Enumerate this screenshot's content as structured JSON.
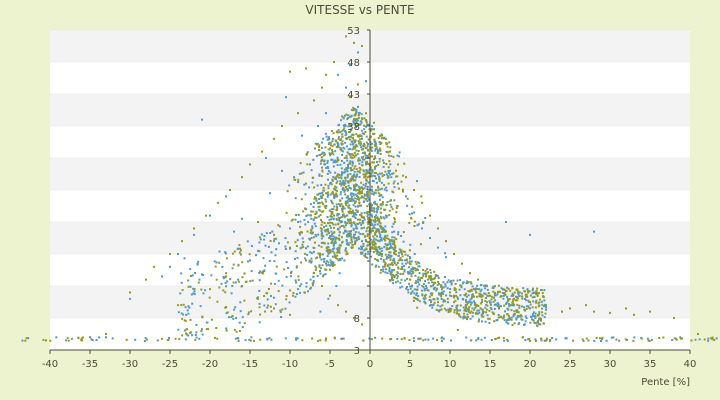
{
  "chart_data": {
    "type": "scatter",
    "title": "VITESSE vs PENTE",
    "xlabel": "Pente [%]",
    "ylabel": "",
    "xlim": [
      -40,
      40
    ],
    "ylim": [
      3,
      53
    ],
    "x_ticks": [
      -40,
      -35,
      -30,
      -25,
      -20,
      -15,
      -10,
      -5,
      0,
      5,
      10,
      15,
      20,
      25,
      30,
      35,
      40
    ],
    "x_tick_labels": [
      "-40",
      "-35",
      "-30",
      "-25",
      "-20",
      "-15",
      "-10",
      "-5",
      "0",
      "5",
      "10",
      "15",
      "20",
      "25",
      "30",
      "35",
      "40"
    ],
    "y_ticks": [
      3,
      8,
      13,
      18,
      23,
      28,
      33,
      38,
      43,
      48,
      53
    ],
    "y_tick_labels": [
      "3",
      "8",
      "13",
      "18",
      "23",
      "28",
      "33",
      "38",
      "43",
      "48",
      "53"
    ],
    "y_visible_labels": [
      "53",
      "48",
      "43",
      "38",
      "8",
      "3"
    ],
    "grid": "horizontal-bands",
    "legend": "none",
    "colors": {
      "series_a": "#4a9ad6",
      "series_b": "#9a9a10",
      "band": "#f3f3f3",
      "plot_bg": "#ffffff",
      "axis": "#4b4b36"
    },
    "series": [
      {
        "color": "#4a9ad6",
        "points": [
          [
            -2.0,
            38.5
          ],
          [
            -1.5,
            41.0
          ],
          [
            -3.0,
            37.0
          ],
          [
            -4.0,
            35.0
          ],
          [
            -2.5,
            33.5
          ],
          [
            -1.0,
            36.0
          ],
          [
            -0.5,
            32.0
          ],
          [
            -3.5,
            30.5
          ],
          [
            -5.0,
            29.0
          ],
          [
            -2.0,
            28.0
          ],
          [
            -1.0,
            27.0
          ],
          [
            0.5,
            26.0
          ],
          [
            1.0,
            25.0
          ],
          [
            2.0,
            24.0
          ],
          [
            -6.0,
            27.5
          ],
          [
            -7.0,
            26.0
          ],
          [
            -8.0,
            25.0
          ],
          [
            -9.0,
            23.0
          ],
          [
            -10.0,
            22.0
          ],
          [
            -12.0,
            20.0
          ],
          [
            -14.0,
            18.5
          ],
          [
            -15.0,
            17.0
          ],
          [
            -4.5,
            24.0
          ],
          [
            -3.0,
            22.5
          ],
          [
            -2.0,
            21.0
          ],
          [
            -1.0,
            20.0
          ],
          [
            0.0,
            19.5
          ],
          [
            1.5,
            18.0
          ],
          [
            3.0,
            17.0
          ],
          [
            4.0,
            16.0
          ],
          [
            5.0,
            15.0
          ],
          [
            6.0,
            14.0
          ],
          [
            7.0,
            13.0
          ],
          [
            8.0,
            12.5
          ],
          [
            9.0,
            12.0
          ],
          [
            10.0,
            11.5
          ],
          [
            11.0,
            11.0
          ],
          [
            12.0,
            10.8
          ],
          [
            13.0,
            10.6
          ],
          [
            14.0,
            10.5
          ],
          [
            15.0,
            10.4
          ],
          [
            16.0,
            10.3
          ],
          [
            17.0,
            10.2
          ],
          [
            18.0,
            10.0
          ],
          [
            19.0,
            9.8
          ],
          [
            20.0,
            9.5
          ],
          [
            22.0,
            9.3
          ],
          [
            24.0,
            9.0
          ],
          [
            -21.0,
            39.0
          ],
          [
            -13.0,
            33.0
          ],
          [
            -10.5,
            42.5
          ],
          [
            -11.0,
            31.0
          ],
          [
            -8.5,
            36.5
          ],
          [
            -6.5,
            38.0
          ],
          [
            -5.5,
            40.0
          ],
          [
            -4.0,
            46.0
          ],
          [
            -3.0,
            44.0
          ],
          [
            -2.5,
            47.5
          ],
          [
            -1.5,
            49.5
          ],
          [
            -0.5,
            45.0
          ],
          [
            -18.0,
            27.0
          ],
          [
            -20.0,
            24.0
          ],
          [
            -22.0,
            21.0
          ],
          [
            -24.0,
            18.0
          ],
          [
            -25.0,
            16.0
          ],
          [
            -26.0,
            14.5
          ],
          [
            -30.0,
            11.0
          ],
          [
            -35.0,
            5.0
          ],
          [
            -38.0,
            4.5
          ],
          [
            17.0,
            23.0
          ],
          [
            20.0,
            21.0
          ],
          [
            28.0,
            21.5
          ],
          [
            2.5,
            31.0
          ],
          [
            3.5,
            29.0
          ],
          [
            4.5,
            27.0
          ],
          [
            5.5,
            24.5
          ],
          [
            6.5,
            22.0
          ],
          [
            7.5,
            20.5
          ],
          [
            8.5,
            19.0
          ],
          [
            9.5,
            17.5
          ],
          [
            1.0,
            34.0
          ],
          [
            0.5,
            37.5
          ],
          [
            2.0,
            36.0
          ],
          [
            -7.5,
            32.0
          ],
          [
            -9.5,
            30.0
          ],
          [
            -12.5,
            27.5
          ],
          [
            -16.0,
            23.5
          ],
          [
            -17.0,
            21.5
          ],
          [
            -1.8,
            30.0
          ],
          [
            -2.2,
            26.5
          ],
          [
            -2.8,
            19.5
          ],
          [
            -3.2,
            17.0
          ],
          [
            -3.8,
            15.0
          ],
          [
            -4.2,
            13.0
          ],
          [
            -5.2,
            11.0
          ],
          [
            -6.2,
            9.0
          ],
          [
            3.8,
            13.5
          ],
          [
            4.8,
            12.0
          ],
          [
            5.8,
            11.0
          ],
          [
            6.8,
            10.5
          ],
          [
            7.8,
            10.0
          ],
          [
            8.8,
            9.8
          ],
          [
            10.8,
            9.6
          ],
          [
            12.8,
            9.5
          ]
        ]
      },
      {
        "color": "#9a9a10",
        "points": [
          [
            -3.0,
            52.0
          ],
          [
            -2.0,
            51.0
          ],
          [
            -1.0,
            50.5
          ],
          [
            -4.5,
            48.0
          ],
          [
            -5.5,
            46.0
          ],
          [
            -8.0,
            47.0
          ],
          [
            -10.0,
            46.5
          ],
          [
            -6.0,
            44.0
          ],
          [
            -7.0,
            42.0
          ],
          [
            -9.0,
            40.0
          ],
          [
            -11.0,
            38.0
          ],
          [
            -12.0,
            36.0
          ],
          [
            -13.5,
            34.0
          ],
          [
            -15.0,
            32.0
          ],
          [
            -16.0,
            30.0
          ],
          [
            -17.5,
            28.0
          ],
          [
            -19.0,
            26.0
          ],
          [
            -20.5,
            24.0
          ],
          [
            -22.0,
            22.0
          ],
          [
            -23.5,
            20.0
          ],
          [
            -25.0,
            18.0
          ],
          [
            -27.0,
            16.0
          ],
          [
            -28.0,
            14.0
          ],
          [
            -30.0,
            12.0
          ],
          [
            -0.5,
            40.0
          ],
          [
            0.5,
            38.5
          ],
          [
            1.5,
            36.5
          ],
          [
            2.5,
            34.0
          ],
          [
            3.5,
            32.0
          ],
          [
            4.5,
            30.0
          ],
          [
            5.5,
            28.0
          ],
          [
            6.5,
            26.0
          ],
          [
            7.5,
            24.0
          ],
          [
            8.5,
            22.0
          ],
          [
            9.5,
            20.0
          ],
          [
            10.5,
            18.0
          ],
          [
            11.5,
            16.5
          ],
          [
            12.5,
            15.0
          ],
          [
            13.5,
            14.0
          ],
          [
            14.5,
            13.0
          ],
          [
            16.0,
            12.0
          ],
          [
            18.0,
            11.0
          ],
          [
            20.0,
            10.5
          ],
          [
            22.0,
            10.0
          ],
          [
            25.0,
            9.5
          ],
          [
            28.0,
            9.0
          ],
          [
            30.0,
            8.8
          ],
          [
            33.0,
            8.5
          ],
          [
            35.0,
            9.0
          ],
          [
            38.0,
            8.0
          ],
          [
            -2.5,
            42.5
          ],
          [
            -1.5,
            44.5
          ],
          [
            -3.5,
            39.5
          ],
          [
            -4.0,
            37.0
          ],
          [
            -5.0,
            34.5
          ],
          [
            -6.0,
            31.5
          ],
          [
            -2.0,
            29.5
          ],
          [
            -1.0,
            27.5
          ],
          [
            0.0,
            25.5
          ],
          [
            1.0,
            23.5
          ],
          [
            2.0,
            21.5
          ],
          [
            3.0,
            19.5
          ],
          [
            4.0,
            18.0
          ],
          [
            5.0,
            16.5
          ],
          [
            6.0,
            15.5
          ],
          [
            7.0,
            14.5
          ],
          [
            8.0,
            13.5
          ],
          [
            9.0,
            12.5
          ],
          [
            10.0,
            12.0
          ],
          [
            -14.0,
            23.0
          ],
          [
            -12.0,
            21.0
          ],
          [
            -10.0,
            19.0
          ],
          [
            -8.0,
            17.0
          ],
          [
            -7.0,
            15.0
          ],
          [
            -6.0,
            13.0
          ],
          [
            -5.0,
            11.5
          ],
          [
            -4.0,
            10.0
          ],
          [
            -3.0,
            9.0
          ],
          [
            -2.0,
            8.0
          ],
          [
            -1.0,
            7.0
          ],
          [
            -18.0,
            15.0
          ],
          [
            -16.0,
            13.0
          ],
          [
            -14.0,
            11.0
          ],
          [
            -12.0,
            9.5
          ],
          [
            -10.0,
            8.5
          ],
          [
            -20.0,
            12.5
          ],
          [
            -24.0,
            10.0
          ],
          [
            -33.0,
            5.5
          ],
          [
            -36.0,
            4.5
          ],
          [
            39.0,
            4.8
          ],
          [
            41.0,
            5.5
          ],
          [
            32.0,
            9.5
          ],
          [
            27.0,
            10.0
          ],
          [
            24.0,
            9.0
          ],
          [
            21.0,
            8.5
          ],
          [
            -40.5,
            4.5
          ]
        ]
      }
    ],
    "baseline_y": 4.7,
    "baseline_x_range": [
      -44,
      44
    ],
    "cloud": [
      {
        "color": "#4a9ad6",
        "count": 1500,
        "seed": 11
      },
      {
        "color": "#9a9a10",
        "count": 1100,
        "seed": 29
      }
    ]
  }
}
